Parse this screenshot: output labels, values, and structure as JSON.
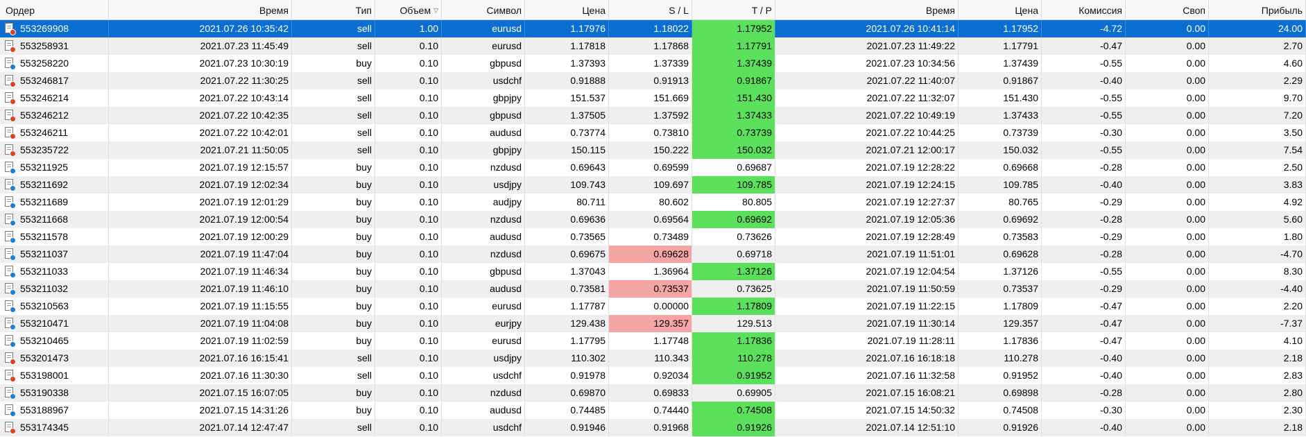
{
  "columns": {
    "order": "Ордер",
    "open_time": "Время",
    "type": "Тип",
    "volume": "Объем",
    "symbol": "Символ",
    "open_price": "Цена",
    "sl": "S / L",
    "tp": "T / P",
    "close_time": "Время",
    "close_price": "Цена",
    "commission": "Комиссия",
    "swap": "Своп",
    "profit": "Прибыль"
  },
  "sort_indicator": "▽",
  "colors": {
    "selected_row": "#0a6fd0",
    "tp_hit_green": "#5be05b",
    "sl_hit_red": "#f6a5a5",
    "sell_icon": "#e0401c",
    "buy_icon": "#1a7fd8"
  },
  "rows": [
    {
      "order": "553269908",
      "open_time": "2021.07.26 10:35:42",
      "type": "sell",
      "volume": "1.00",
      "symbol": "eurusd",
      "open_price": "1.17976",
      "sl": "1.18022",
      "tp": "1.17952",
      "close_time": "2021.07.26 10:41:14",
      "close_price": "1.17952",
      "commission": "-4.72",
      "swap": "0.00",
      "profit": "24.00",
      "hit": "tp",
      "icon": "sell-order-icon"
    },
    {
      "order": "553258931",
      "open_time": "2021.07.23 11:45:49",
      "type": "sell",
      "volume": "0.10",
      "symbol": "eurusd",
      "open_price": "1.17818",
      "sl": "1.17868",
      "tp": "1.17791",
      "close_time": "2021.07.23 11:49:22",
      "close_price": "1.17791",
      "commission": "-0.47",
      "swap": "0.00",
      "profit": "2.70",
      "hit": "tp",
      "icon": "sell-order-icon"
    },
    {
      "order": "553258220",
      "open_time": "2021.07.23 10:30:19",
      "type": "buy",
      "volume": "0.10",
      "symbol": "gbpusd",
      "open_price": "1.37393",
      "sl": "1.37339",
      "tp": "1.37439",
      "close_time": "2021.07.23 10:34:56",
      "close_price": "1.37439",
      "commission": "-0.55",
      "swap": "0.00",
      "profit": "4.60",
      "hit": "tp",
      "icon": "buy-order-icon"
    },
    {
      "order": "553246817",
      "open_time": "2021.07.22 11:30:25",
      "type": "sell",
      "volume": "0.10",
      "symbol": "usdchf",
      "open_price": "0.91888",
      "sl": "0.91913",
      "tp": "0.91867",
      "close_time": "2021.07.22 11:40:07",
      "close_price": "0.91867",
      "commission": "-0.40",
      "swap": "0.00",
      "profit": "2.29",
      "hit": "tp",
      "icon": "sell-order-icon"
    },
    {
      "order": "553246214",
      "open_time": "2021.07.22 10:43:14",
      "type": "sell",
      "volume": "0.10",
      "symbol": "gbpjpy",
      "open_price": "151.537",
      "sl": "151.669",
      "tp": "151.430",
      "close_time": "2021.07.22 11:32:07",
      "close_price": "151.430",
      "commission": "-0.55",
      "swap": "0.00",
      "profit": "9.70",
      "hit": "tp",
      "icon": "sell-order-icon"
    },
    {
      "order": "553246212",
      "open_time": "2021.07.22 10:42:35",
      "type": "sell",
      "volume": "0.10",
      "symbol": "gbpusd",
      "open_price": "1.37505",
      "sl": "1.37592",
      "tp": "1.37433",
      "close_time": "2021.07.22 10:49:19",
      "close_price": "1.37433",
      "commission": "-0.55",
      "swap": "0.00",
      "profit": "7.20",
      "hit": "tp",
      "icon": "sell-order-icon"
    },
    {
      "order": "553246211",
      "open_time": "2021.07.22 10:42:01",
      "type": "sell",
      "volume": "0.10",
      "symbol": "audusd",
      "open_price": "0.73774",
      "sl": "0.73810",
      "tp": "0.73739",
      "close_time": "2021.07.22 10:44:25",
      "close_price": "0.73739",
      "commission": "-0.30",
      "swap": "0.00",
      "profit": "3.50",
      "hit": "tp",
      "icon": "sell-order-icon"
    },
    {
      "order": "553235722",
      "open_time": "2021.07.21 11:50:05",
      "type": "sell",
      "volume": "0.10",
      "symbol": "gbpjpy",
      "open_price": "150.115",
      "sl": "150.222",
      "tp": "150.032",
      "close_time": "2021.07.21 12:00:17",
      "close_price": "150.032",
      "commission": "-0.55",
      "swap": "0.00",
      "profit": "7.54",
      "hit": "tp",
      "icon": "sell-order-icon"
    },
    {
      "order": "553211925",
      "open_time": "2021.07.19 12:15:57",
      "type": "buy",
      "volume": "0.10",
      "symbol": "nzdusd",
      "open_price": "0.69643",
      "sl": "0.69599",
      "tp": "0.69687",
      "close_time": "2021.07.19 12:28:22",
      "close_price": "0.69668",
      "commission": "-0.28",
      "swap": "0.00",
      "profit": "2.50",
      "hit": "",
      "icon": "buy-order-icon"
    },
    {
      "order": "553211692",
      "open_time": "2021.07.19 12:02:34",
      "type": "buy",
      "volume": "0.10",
      "symbol": "usdjpy",
      "open_price": "109.743",
      "sl": "109.697",
      "tp": "109.785",
      "close_time": "2021.07.19 12:24:15",
      "close_price": "109.785",
      "commission": "-0.40",
      "swap": "0.00",
      "profit": "3.83",
      "hit": "tp",
      "icon": "buy-order-icon"
    },
    {
      "order": "553211689",
      "open_time": "2021.07.19 12:01:29",
      "type": "buy",
      "volume": "0.10",
      "symbol": "audjpy",
      "open_price": "80.711",
      "sl": "80.602",
      "tp": "80.805",
      "close_time": "2021.07.19 12:27:37",
      "close_price": "80.765",
      "commission": "-0.29",
      "swap": "0.00",
      "profit": "4.92",
      "hit": "",
      "icon": "buy-order-icon"
    },
    {
      "order": "553211668",
      "open_time": "2021.07.19 12:00:54",
      "type": "buy",
      "volume": "0.10",
      "symbol": "nzdusd",
      "open_price": "0.69636",
      "sl": "0.69564",
      "tp": "0.69692",
      "close_time": "2021.07.19 12:05:36",
      "close_price": "0.69692",
      "commission": "-0.28",
      "swap": "0.00",
      "profit": "5.60",
      "hit": "tp",
      "icon": "buy-order-icon"
    },
    {
      "order": "553211578",
      "open_time": "2021.07.19 12:00:29",
      "type": "buy",
      "volume": "0.10",
      "symbol": "audusd",
      "open_price": "0.73565",
      "sl": "0.73489",
      "tp": "0.73626",
      "close_time": "2021.07.19 12:28:49",
      "close_price": "0.73583",
      "commission": "-0.29",
      "swap": "0.00",
      "profit": "1.80",
      "hit": "",
      "icon": "buy-order-icon"
    },
    {
      "order": "553211037",
      "open_time": "2021.07.19 11:47:04",
      "type": "buy",
      "volume": "0.10",
      "symbol": "nzdusd",
      "open_price": "0.69675",
      "sl": "0.69628",
      "tp": "0.69718",
      "close_time": "2021.07.19 11:51:01",
      "close_price": "0.69628",
      "commission": "-0.28",
      "swap": "0.00",
      "profit": "-4.70",
      "hit": "sl",
      "icon": "buy-order-icon"
    },
    {
      "order": "553211033",
      "open_time": "2021.07.19 11:46:34",
      "type": "buy",
      "volume": "0.10",
      "symbol": "gbpusd",
      "open_price": "1.37043",
      "sl": "1.36964",
      "tp": "1.37126",
      "close_time": "2021.07.19 12:04:54",
      "close_price": "1.37126",
      "commission": "-0.55",
      "swap": "0.00",
      "profit": "8.30",
      "hit": "tp",
      "icon": "buy-order-icon"
    },
    {
      "order": "553211032",
      "open_time": "2021.07.19 11:46:10",
      "type": "buy",
      "volume": "0.10",
      "symbol": "audusd",
      "open_price": "0.73581",
      "sl": "0.73537",
      "tp": "0.73625",
      "close_time": "2021.07.19 11:50:59",
      "close_price": "0.73537",
      "commission": "-0.29",
      "swap": "0.00",
      "profit": "-4.40",
      "hit": "sl",
      "icon": "buy-order-icon"
    },
    {
      "order": "553210563",
      "open_time": "2021.07.19 11:15:55",
      "type": "buy",
      "volume": "0.10",
      "symbol": "eurusd",
      "open_price": "1.17787",
      "sl": "0.00000",
      "tp": "1.17809",
      "close_time": "2021.07.19 11:22:15",
      "close_price": "1.17809",
      "commission": "-0.47",
      "swap": "0.00",
      "profit": "2.20",
      "hit": "tp",
      "icon": "buy-order-icon"
    },
    {
      "order": "553210471",
      "open_time": "2021.07.19 11:04:08",
      "type": "buy",
      "volume": "0.10",
      "symbol": "eurjpy",
      "open_price": "129.438",
      "sl": "129.357",
      "tp": "129.513",
      "close_time": "2021.07.19 11:30:14",
      "close_price": "129.357",
      "commission": "-0.47",
      "swap": "0.00",
      "profit": "-7.37",
      "hit": "sl",
      "icon": "buy-order-icon"
    },
    {
      "order": "553210465",
      "open_time": "2021.07.19 11:02:59",
      "type": "buy",
      "volume": "0.10",
      "symbol": "eurusd",
      "open_price": "1.17795",
      "sl": "1.17748",
      "tp": "1.17836",
      "close_time": "2021.07.19 11:28:11",
      "close_price": "1.17836",
      "commission": "-0.47",
      "swap": "0.00",
      "profit": "4.10",
      "hit": "tp",
      "icon": "buy-order-icon"
    },
    {
      "order": "553201473",
      "open_time": "2021.07.16 16:15:41",
      "type": "sell",
      "volume": "0.10",
      "symbol": "usdjpy",
      "open_price": "110.302",
      "sl": "110.343",
      "tp": "110.278",
      "close_time": "2021.07.16 16:18:18",
      "close_price": "110.278",
      "commission": "-0.40",
      "swap": "0.00",
      "profit": "2.18",
      "hit": "tp",
      "icon": "sell-order-icon"
    },
    {
      "order": "553198001",
      "open_time": "2021.07.16 11:30:30",
      "type": "sell",
      "volume": "0.10",
      "symbol": "usdchf",
      "open_price": "0.91978",
      "sl": "0.92034",
      "tp": "0.91952",
      "close_time": "2021.07.16 11:32:58",
      "close_price": "0.91952",
      "commission": "-0.40",
      "swap": "0.00",
      "profit": "2.83",
      "hit": "tp",
      "icon": "sell-order-icon"
    },
    {
      "order": "553190338",
      "open_time": "2021.07.15 16:07:05",
      "type": "buy",
      "volume": "0.10",
      "symbol": "nzdusd",
      "open_price": "0.69870",
      "sl": "0.69833",
      "tp": "0.69905",
      "close_time": "2021.07.15 16:08:21",
      "close_price": "0.69898",
      "commission": "-0.28",
      "swap": "0.00",
      "profit": "2.80",
      "hit": "",
      "icon": "buy-order-icon"
    },
    {
      "order": "553188967",
      "open_time": "2021.07.15 14:31:26",
      "type": "buy",
      "volume": "0.10",
      "symbol": "audusd",
      "open_price": "0.74485",
      "sl": "0.74440",
      "tp": "0.74508",
      "close_time": "2021.07.15 14:50:32",
      "close_price": "0.74508",
      "commission": "-0.30",
      "swap": "0.00",
      "profit": "2.30",
      "hit": "tp",
      "icon": "buy-order-icon"
    },
    {
      "order": "553174345",
      "open_time": "2021.07.14 12:47:47",
      "type": "sell",
      "volume": "0.10",
      "symbol": "usdchf",
      "open_price": "0.91946",
      "sl": "0.91968",
      "tp": "0.91926",
      "close_time": "2021.07.14 12:51:10",
      "close_price": "0.91926",
      "commission": "-0.40",
      "swap": "0.00",
      "profit": "2.18",
      "hit": "tp",
      "icon": "sell-order-icon"
    }
  ]
}
